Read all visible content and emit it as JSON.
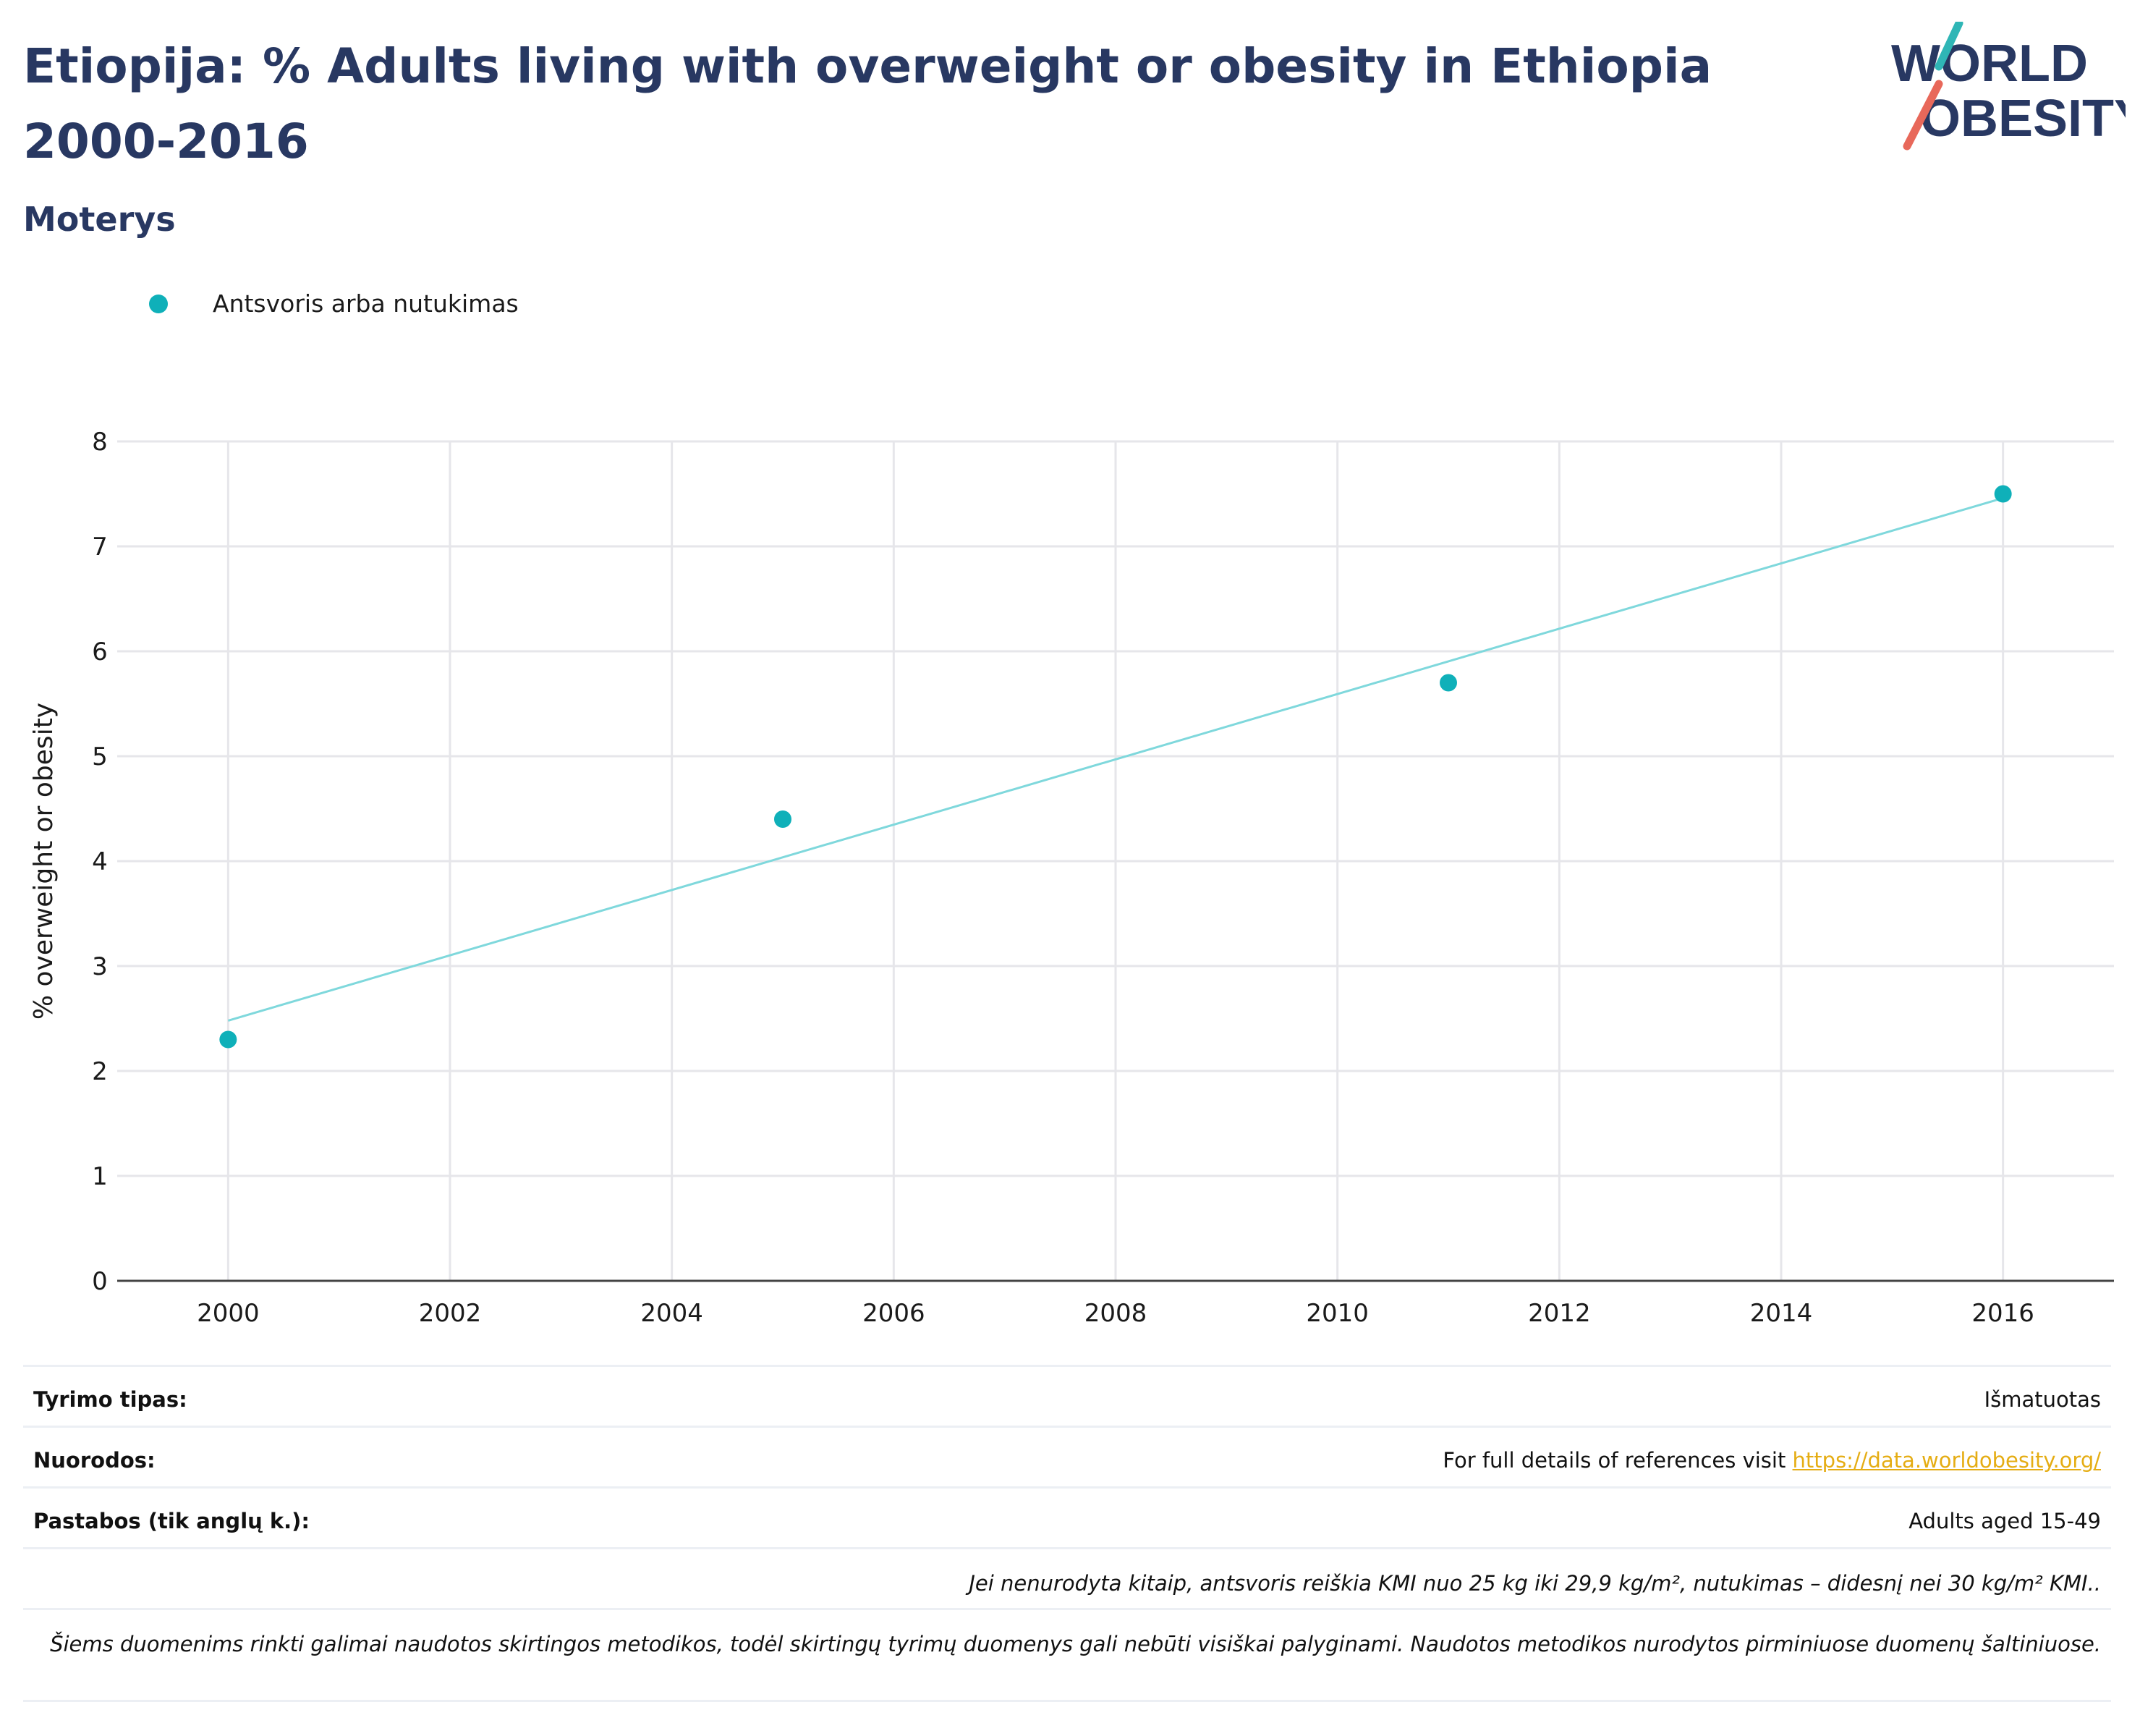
{
  "header": {
    "title": "Etiopija: % Adults living with overweight or obesity in Ethiopia 2000-2016",
    "subtitle": "Moterys",
    "logo_text_line1": "WORLD",
    "logo_text_line2": "OBESITY"
  },
  "colors": {
    "title": "#283862",
    "series": "#0fb0b9",
    "trend": "#7fd8dc",
    "grid": "#e6e6ea",
    "link": "#e5ad14",
    "logo_teal": "#2fb6b6",
    "logo_coral": "#e8685a"
  },
  "chart_data": {
    "type": "scatter",
    "series": [
      {
        "name": "Antsvoris arba nutukimas",
        "x": [
          2000,
          2005,
          2011,
          2016
        ],
        "y": [
          2.3,
          4.4,
          5.7,
          7.5
        ]
      }
    ],
    "trendline": {
      "x": [
        2000,
        2016
      ],
      "y": [
        2.48,
        7.46
      ]
    },
    "xlim": [
      1999,
      2017
    ],
    "ylim": [
      0,
      8
    ],
    "xticks": [
      "2000",
      "2002",
      "2004",
      "2006",
      "2008",
      "2010",
      "2012",
      "2014",
      "2016"
    ],
    "yticks": [
      "0",
      "1",
      "2",
      "3",
      "4",
      "5",
      "6",
      "7",
      "8"
    ],
    "xlabel": "",
    "ylabel": "% overweight or obesity",
    "grid": true,
    "legend": "top-left"
  },
  "footer": {
    "study_type_label": "Tyrimo tipas:",
    "study_type_value": "Išmatuotas",
    "references_label": "Nuorodos:",
    "references_text": "For full details of references visit ",
    "references_link": "https://data.worldobesity.org/",
    "notes_label": "Pastabos (tik anglų k.):",
    "notes_value": "Adults aged 15-49",
    "definition_note": "Jei nenurodyta kitaip, antsvoris reiškia KMI nuo 25 kg iki 29,9 kg/m², nutukimas – didesnį nei 30 kg/m² KMI..",
    "methods_note": "Šiems duomenims rinkti galimai naudotos skirtingos metodikos, todėl skirtingų tyrimų duomenys gali nebūti visiškai palyginami. Naudotos metodikos nurodytos pirminiuose duomenų šaltiniuose."
  }
}
